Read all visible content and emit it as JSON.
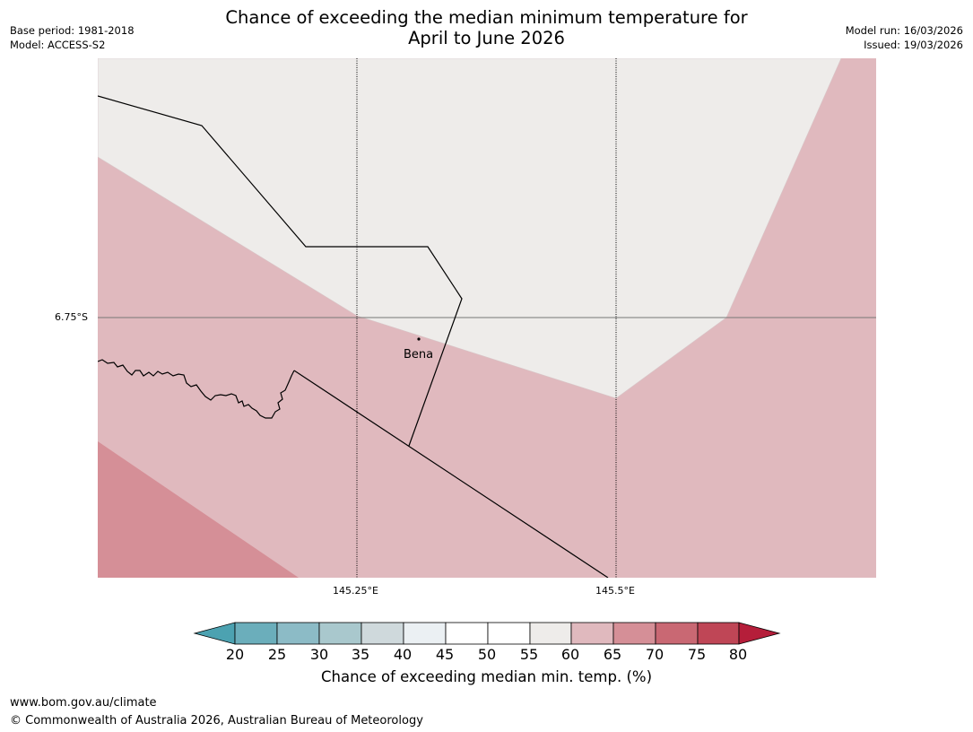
{
  "header": {
    "title_line1": "Chance of exceeding the median minimum temperature for",
    "title_line2": "April to June 2026",
    "base_period": "Base period: 1981-2018",
    "model": "Model: ACCESS-S2",
    "model_run": "Model run: 16/03/2026",
    "issued": "Issued: 19/03/2026"
  },
  "map": {
    "lat_label": "6.75°S",
    "lon_labels": [
      "145.25°E",
      "145.5°E"
    ],
    "place_label": "Bena",
    "colors": {
      "class_55_60": "#eeecea",
      "class_60_65": "#e0b9be",
      "class_65_70": "#d58f97"
    }
  },
  "colorbar": {
    "ticks": [
      "20",
      "25",
      "30",
      "35",
      "40",
      "45",
      "50",
      "55",
      "60",
      "65",
      "70",
      "75",
      "80"
    ],
    "colors": [
      "#4ca2b1",
      "#6baebb",
      "#8cbbc6",
      "#a9c8cd",
      "#cfd9dc",
      "#ebf0f3",
      "#ffffff",
      "#ffffff",
      "#eeecea",
      "#e0b9be",
      "#d58f97",
      "#c96873",
      "#bf4656",
      "#b51e3a"
    ],
    "label": "Chance of exceeding median min. temp. (%)"
  },
  "footer": {
    "url": "www.bom.gov.au/climate",
    "copyright": "© Commonwealth of Australia 2026, Australian Bureau of Meteorology"
  }
}
